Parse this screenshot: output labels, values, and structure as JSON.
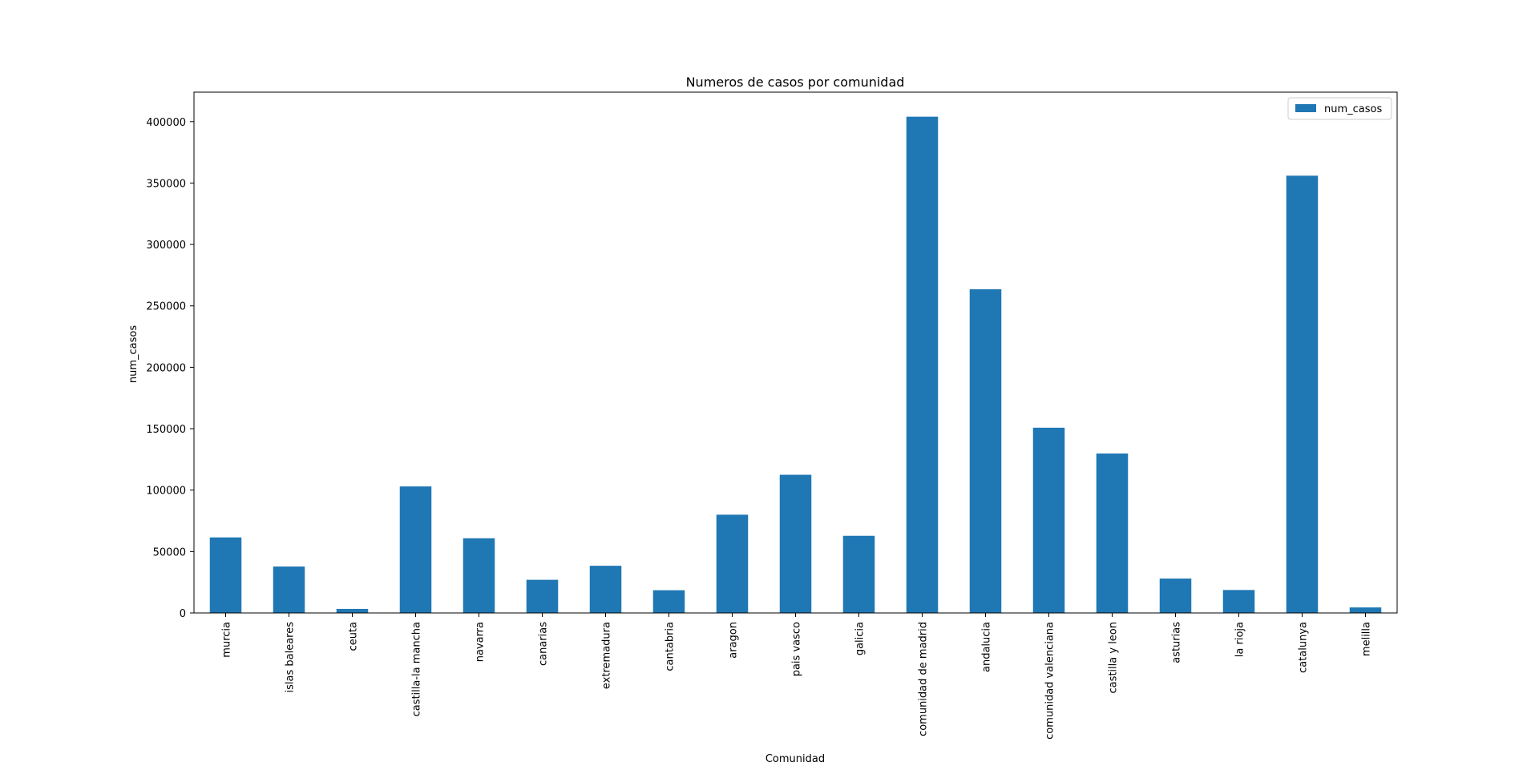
{
  "chart_data": {
    "type": "bar",
    "title": "Numeros de casos por comunidad",
    "xlabel": "Comunidad",
    "ylabel": "num_casos",
    "categories": [
      "murcia",
      "islas baleares",
      "ceuta",
      "castilla-la mancha",
      "navarra",
      "canarias",
      "extremadura",
      "cantabria",
      "aragon",
      "pais vasco",
      "galicia",
      "comunidad de madrid",
      "andalucia",
      "comunidad valenciana",
      "castilla y leon",
      "asturias",
      "la rioja",
      "catalunya",
      "melilla"
    ],
    "series": [
      {
        "name": "num_casos",
        "color": "#1f77b4",
        "values": [
          61500,
          37800,
          3300,
          103000,
          60800,
          27000,
          38400,
          18500,
          80000,
          112500,
          62800,
          404000,
          263500,
          150800,
          129800,
          28000,
          18700,
          356000,
          4500
        ]
      }
    ],
    "ylim": [
      0,
      424000
    ],
    "yticks": [
      0,
      50000,
      100000,
      150000,
      200000,
      250000,
      300000,
      350000,
      400000
    ],
    "grid": false,
    "legend": "top-right"
  }
}
